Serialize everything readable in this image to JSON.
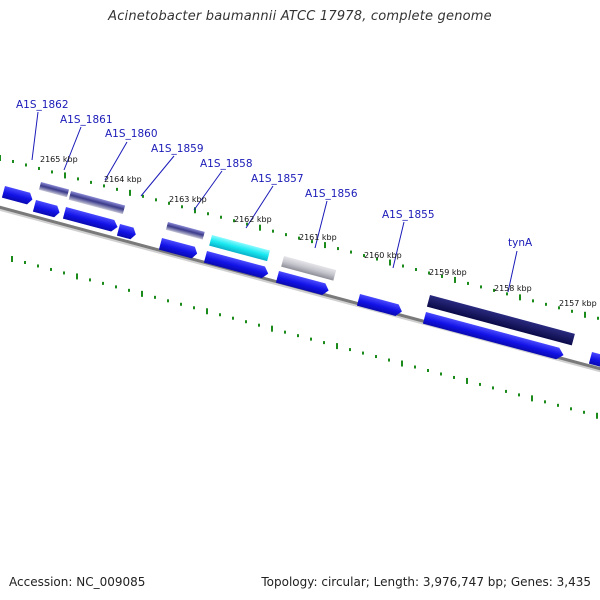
{
  "title": "Acinetobacter baumannii ATCC 17978, complete genome",
  "colors": {
    "forward_strand": "#1a1aee",
    "label_blue": "#1a1ab8",
    "backbone": "#777777",
    "ticks": "#1a8a1a",
    "highlight_cyan": "#18e8f0",
    "dark_navy": "#101060",
    "gray_gene": "#b8b8c0"
  },
  "map": {
    "scale_ticks": [
      {
        "label": "2165 kbp"
      },
      {
        "label": "2164 kbp"
      },
      {
        "label": "2163 kbp"
      },
      {
        "label": "2162 kbp"
      },
      {
        "label": "2161 kbp"
      },
      {
        "label": "2160 kbp"
      },
      {
        "label": "2159 kbp"
      },
      {
        "label": "2158 kbp"
      },
      {
        "label": "2157 kbp"
      }
    ],
    "gene_labels": [
      {
        "label": "A1S_1862"
      },
      {
        "label": "A1S_1861"
      },
      {
        "label": "A1S_1860"
      },
      {
        "label": "A1S_1859"
      },
      {
        "label": "A1S_1858"
      },
      {
        "label": "A1S_1857"
      },
      {
        "label": "A1S_1856"
      },
      {
        "label": "A1S_1855"
      },
      {
        "label": "tynA"
      }
    ]
  },
  "footer": {
    "accession": "Accession: NC_009085",
    "summary": "Topology: circular; Length: 3,976,747 bp; Genes: 3,435"
  }
}
